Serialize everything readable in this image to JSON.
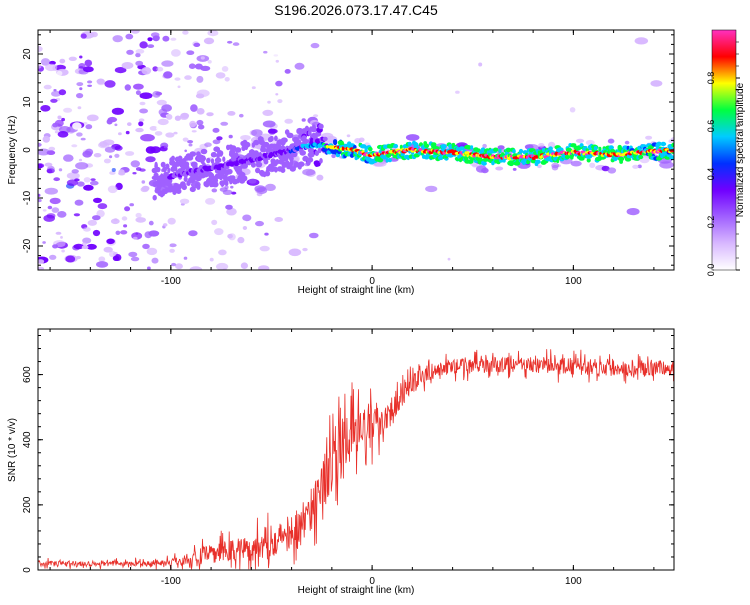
{
  "figure_title": "S196.2026.073.17.47.C45",
  "colors": {
    "axis": "#000000",
    "snr_line": "#e8302a",
    "colormap": [
      "#ffffff",
      "#d8b8ff",
      "#a060ff",
      "#7000ff",
      "#0030ff",
      "#00ccff",
      "#00ff40",
      "#ffff00",
      "#ff0000",
      "#ff30c0"
    ]
  },
  "chart_data": [
    {
      "type": "heatmap",
      "name": "spectrogram",
      "xlabel": "Height of straight line (km)",
      "ylabel": "Frequency (Hz)",
      "xlim": [
        -166,
        150
      ],
      "ylim": [
        -25,
        25
      ],
      "xticks": [
        -100,
        0,
        100
      ],
      "xtick_labels": [
        "-100",
        "0",
        "100"
      ],
      "yticks": [
        -20,
        -10,
        0,
        10,
        20
      ],
      "ytick_labels": [
        "-20",
        "-10",
        "0",
        "10",
        "20"
      ],
      "colorbar": {
        "label": "Normalized spectral amplitude",
        "range": [
          0,
          1
        ],
        "ticks": [
          0.0,
          0.2,
          0.4,
          0.6,
          0.8
        ],
        "tick_labels": [
          "0.0",
          "0.2",
          "0.4",
          "0.6",
          "0.8"
        ]
      },
      "ridge": {
        "description": "signal ridge frequency (Hz) vs height (km)",
        "x": [
          -105,
          -95,
          -85,
          -75,
          -65,
          -55,
          -45,
          -35,
          -30,
          -25,
          -20,
          -10,
          0,
          20,
          40,
          60,
          80,
          100,
          120,
          150
        ],
        "y": [
          -6,
          -5,
          -4,
          -3.5,
          -2.5,
          -1.5,
          -0.5,
          0.5,
          1,
          1,
          0.5,
          0,
          -1,
          0,
          -0.5,
          -1.5,
          -1.5,
          -0.5,
          -1,
          0
        ],
        "amplitude": [
          0.25,
          0.3,
          0.3,
          0.35,
          0.35,
          0.3,
          0.35,
          0.45,
          0.5,
          0.55,
          0.75,
          0.8,
          0.85,
          0.85,
          0.85,
          0.85,
          0.85,
          0.85,
          0.85,
          0.8
        ]
      }
    },
    {
      "type": "line",
      "name": "snr",
      "xlabel": "Height of straight line (km)",
      "ylabel": "SNR (10 * v/v)",
      "xlim": [
        -166,
        150
      ],
      "ylim": [
        0,
        740
      ],
      "xticks": [
        -100,
        0,
        100
      ],
      "xtick_labels": [
        "-100",
        "0",
        "100"
      ],
      "yticks": [
        0,
        200,
        400,
        600
      ],
      "ytick_labels": [
        "0",
        "200",
        "400",
        "600"
      ],
      "series": [
        {
          "name": "SNR",
          "x": [
            -166,
            -150,
            -130,
            -110,
            -100,
            -90,
            -80,
            -70,
            -60,
            -50,
            -40,
            -35,
            -30,
            -25,
            -20,
            -15,
            -10,
            -5,
            0,
            5,
            10,
            15,
            20,
            25,
            30,
            40,
            60,
            80,
            100,
            120,
            150
          ],
          "y": [
            20,
            20,
            20,
            20,
            25,
            35,
            50,
            60,
            70,
            90,
            110,
            140,
            190,
            260,
            330,
            380,
            420,
            430,
            440,
            460,
            500,
            540,
            570,
            595,
            610,
            625,
            630,
            630,
            625,
            620,
            620
          ],
          "spread": [
            15,
            15,
            15,
            15,
            20,
            35,
            50,
            60,
            70,
            80,
            90,
            100,
            120,
            140,
            150,
            140,
            130,
            110,
            100,
            80,
            70,
            60,
            50,
            45,
            40,
            40,
            40,
            40,
            45,
            40,
            40
          ]
        }
      ]
    }
  ]
}
